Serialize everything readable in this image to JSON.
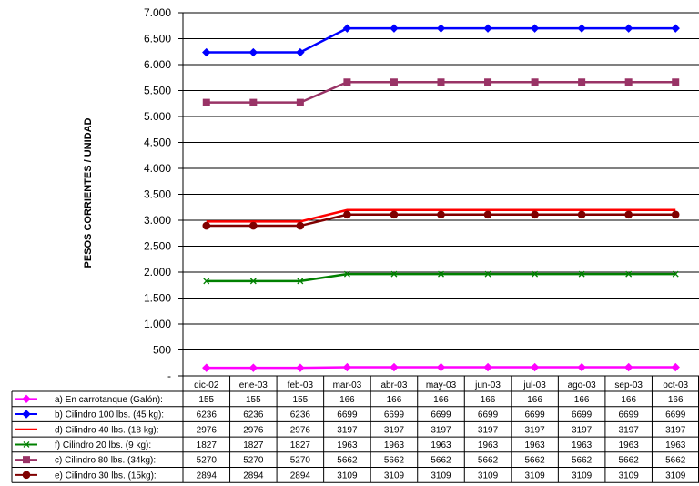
{
  "chart_data": {
    "type": "line",
    "title": "",
    "xlabel": "",
    "ylabel": "PESOS CORRIENTES / UNIDAD",
    "ylim": [
      0,
      7000
    ],
    "y_ticks": [
      "-",
      "500",
      "1.000",
      "1.500",
      "2.000",
      "2.500",
      "3.000",
      "3.500",
      "4.000",
      "4.500",
      "5.000",
      "5.500",
      "6.000",
      "6.500",
      "7.000"
    ],
    "grid": "horizontal",
    "legend": "data-table-below",
    "categories": [
      "dic-02",
      "ene-03",
      "feb-03",
      "mar-03",
      "abr-03",
      "may-03",
      "jun-03",
      "jul-03",
      "ago-03",
      "sep-03",
      "oct-03"
    ],
    "series": [
      {
        "name": "a) En carrotanque (Galón):",
        "color": "#ff00ff",
        "marker": "diamond",
        "values": [
          155,
          155,
          155,
          166,
          166,
          166,
          166,
          166,
          166,
          166,
          166
        ]
      },
      {
        "name": "b) Cilindro 100 lbs. (45 kg):",
        "color": "#0000ff",
        "marker": "diamond",
        "values": [
          6236,
          6236,
          6236,
          6699,
          6699,
          6699,
          6699,
          6699,
          6699,
          6699,
          6699
        ]
      },
      {
        "name": "d) Cilindro 40 lbs. (18 kg):",
        "color": "#ff0000",
        "marker": "none",
        "values": [
          2976,
          2976,
          2976,
          3197,
          3197,
          3197,
          3197,
          3197,
          3197,
          3197,
          3197
        ]
      },
      {
        "name": "f) Cilindro 20 lbs. (9 kg):",
        "color": "#008000",
        "marker": "x",
        "values": [
          1827,
          1827,
          1827,
          1963,
          1963,
          1963,
          1963,
          1963,
          1963,
          1963,
          1963
        ]
      },
      {
        "name": "c) Cilindro 80 lbs. (34kg):",
        "color": "#993366",
        "marker": "square",
        "values": [
          5270,
          5270,
          5270,
          5662,
          5662,
          5662,
          5662,
          5662,
          5662,
          5662,
          5662
        ]
      },
      {
        "name": "e) Cilindro 30 lbs. (15kg):",
        "color": "#800000",
        "marker": "circle",
        "values": [
          2894,
          2894,
          2894,
          3109,
          3109,
          3109,
          3109,
          3109,
          3109,
          3109,
          3109
        ]
      }
    ]
  }
}
